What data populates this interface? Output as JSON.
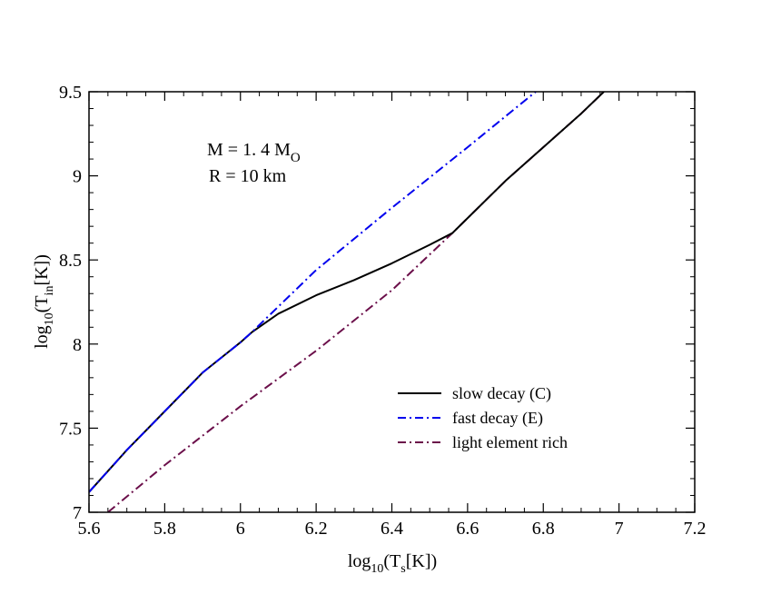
{
  "chart_data": {
    "type": "line",
    "title": "",
    "xlabel": {
      "base": "log",
      "sub": "10",
      "open": "(T",
      "var_sub": "s",
      "close": "[K])"
    },
    "ylabel": {
      "base": "log",
      "sub": "10",
      "open": "(T",
      "var_sub": "in",
      "close": "[K])"
    },
    "xlim": [
      5.6,
      7.2
    ],
    "ylim": [
      7.0,
      9.5
    ],
    "xticks": [
      5.6,
      5.8,
      6.0,
      6.2,
      6.4,
      6.6,
      6.8,
      7.0,
      7.2
    ],
    "xtick_labels": [
      "5.6",
      "5.8",
      "6",
      "6.2",
      "6.4",
      "6.6",
      "6.8",
      "7",
      "7.2"
    ],
    "yticks": [
      7.0,
      7.5,
      8.0,
      8.5,
      9.0,
      9.5
    ],
    "ytick_labels": [
      "7",
      "7.5",
      "8",
      "8.5",
      "9",
      "9.5"
    ],
    "annotation": {
      "line1_main": "M = 1. 4 M",
      "line1_sub": "O",
      "line2": "R = 10 km"
    },
    "legend_position": "lower-right",
    "series": [
      {
        "id": "slow",
        "name": "slow decay (C)",
        "color": "#000000",
        "dash": "solid",
        "x": [
          5.6,
          5.7,
          5.8,
          5.9,
          6.0,
          6.03,
          6.1,
          6.2,
          6.3,
          6.4,
          6.5,
          6.56,
          6.7,
          6.8,
          6.9,
          6.96
        ],
        "y": [
          7.12,
          7.37,
          7.6,
          7.83,
          8.01,
          8.07,
          8.18,
          8.29,
          8.38,
          8.48,
          8.59,
          8.66,
          8.97,
          9.17,
          9.37,
          9.5
        ]
      },
      {
        "id": "fast",
        "name": "fast decay (E)",
        "color": "#0000ee",
        "dash": "dashdot",
        "x": [
          5.6,
          5.7,
          5.8,
          5.9,
          6.0,
          6.03,
          6.2,
          6.4,
          6.6,
          6.78
        ],
        "y": [
          7.12,
          7.37,
          7.6,
          7.83,
          8.01,
          8.07,
          8.44,
          8.81,
          9.17,
          9.5
        ]
      },
      {
        "id": "light",
        "name": "light element rich",
        "color": "#6b0f4a",
        "dash": "dashdot",
        "x": [
          5.65,
          5.8,
          6.0,
          6.2,
          6.4,
          6.56,
          6.7,
          6.8,
          6.9,
          6.96
        ],
        "y": [
          7.0,
          7.28,
          7.63,
          7.96,
          8.32,
          8.66,
          8.97,
          9.17,
          9.37,
          9.5
        ]
      }
    ]
  }
}
